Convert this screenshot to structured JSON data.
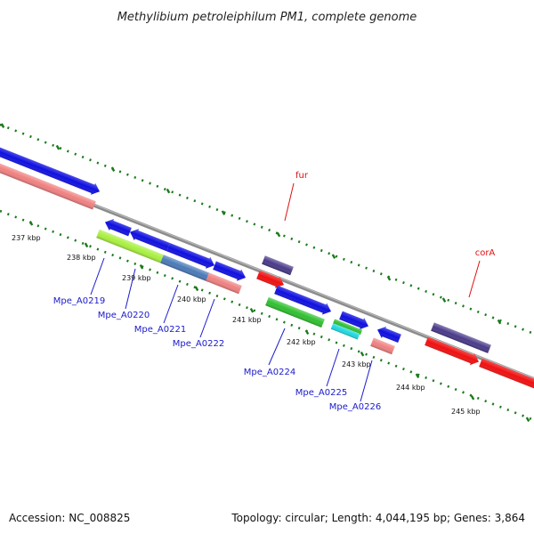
{
  "title": "Methylibium petroleiphilum PM1, complete genome",
  "footer": {
    "accession": "Accession: NC_008825",
    "summary": "Topology: circular; Length: 4,044,195 bp; Genes: 3,864"
  },
  "kbp_labels": [
    "237 kbp",
    "238 kbp",
    "239 kbp",
    "240 kbp",
    "241 kbp",
    "242 kbp",
    "243 kbp",
    "244 kbp",
    "245 kbp"
  ],
  "gene_labels": {
    "fur": "fur",
    "corA": "corA",
    "Mpe_A0219": "Mpe_A0219",
    "Mpe_A0220": "Mpe_A0220",
    "Mpe_A0221": "Mpe_A0221",
    "Mpe_A0222": "Mpe_A0222",
    "Mpe_A0224": "Mpe_A0224",
    "Mpe_A0225": "Mpe_A0225",
    "Mpe_A0226": "Mpe_A0226"
  },
  "colors": {
    "backbone": "#8c8c8c",
    "tick": "#1a7a1a",
    "label_blue": "#1a1acc",
    "label_red": "#e01010",
    "gene_blue": "#1010e0",
    "gene_red": "#f01010",
    "gene_pink": "#f08080",
    "gene_purple": "#4a3a8a",
    "gene_lime": "#a8f040",
    "gene_steel": "#4a7ab8",
    "gene_green": "#30c030",
    "gene_cyan": "#20d8e0"
  }
}
